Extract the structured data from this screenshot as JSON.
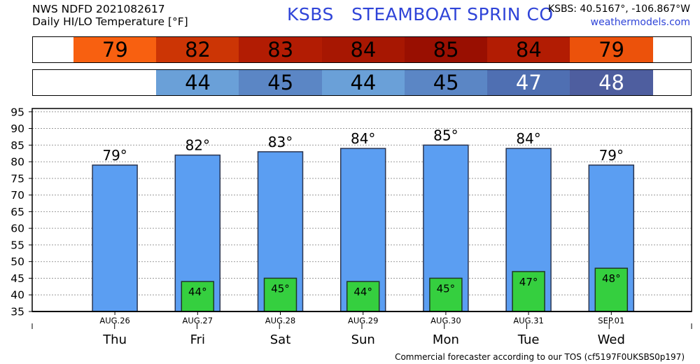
{
  "header": {
    "line1": "NWS NDFD 2021082617",
    "line2": "Daily HI/LO Temperature [°F]",
    "station": "KSBS   STEAMBOAT SPRIN CO",
    "coords": "KSBS: 40.5167°, -106.867°W",
    "site": "weathermodels.com"
  },
  "footer": "Commercial forecaster according to our TOS (cf5197F0UKSBS0p197)",
  "colors": {
    "hi_strip": [
      "#f86010",
      "#cc3505",
      "#b21c03",
      "#a71702",
      "#990f01",
      "#b21c03",
      "#ec520b"
    ],
    "lo_strip": [
      "#6aa0d8",
      "#5b86c5",
      "#6aa0d8",
      "#5b86c5",
      "#4f6fb2",
      "#4e5e9f"
    ],
    "hi_bar": "#5b9ef2",
    "lo_bar": "#35cf3f"
  },
  "chart_data": {
    "type": "bar",
    "categories": [
      "Thu",
      "Fri",
      "Sat",
      "Sun",
      "Mon",
      "Tue",
      "Wed"
    ],
    "dates": [
      "AUG.26",
      "AUG.27",
      "AUG.28",
      "AUG.29",
      "AUG.30",
      "AUG.31",
      "SEP.01"
    ],
    "series": [
      {
        "values": [
          79,
          82,
          83,
          84,
          85,
          84,
          79
        ]
      },
      {
        "values": [
          null,
          44,
          45,
          44,
          45,
          47,
          48
        ]
      }
    ],
    "hi_labels": [
      "79°",
      "82°",
      "83°",
      "84°",
      "85°",
      "84°",
      "79°"
    ],
    "lo_labels": [
      "",
      "44°",
      "45°",
      "44°",
      "45°",
      "47°",
      "48°"
    ],
    "hi_strip_labels": [
      "79",
      "82",
      "83",
      "84",
      "85",
      "84",
      "79"
    ],
    "lo_strip_labels": [
      "",
      "44",
      "45",
      "44",
      "45",
      "47",
      "48"
    ],
    "y_ticks": [
      "35",
      "40",
      "45",
      "50",
      "55",
      "60",
      "65",
      "70",
      "75",
      "80",
      "85",
      "90",
      "95"
    ],
    "ylim": [
      35,
      96
    ],
    "grid": true
  }
}
